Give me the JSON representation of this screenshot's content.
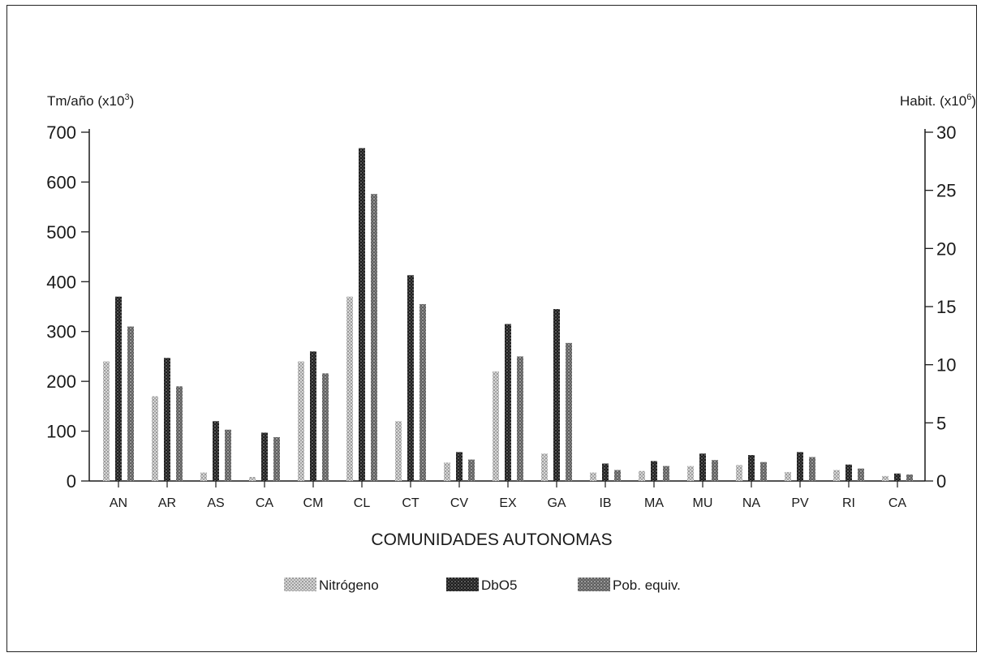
{
  "chart_data": {
    "type": "bar",
    "title": "",
    "xlabel": "COMUNIDADES AUTONOMAS",
    "ylabel_left": "Tm/año (x10",
    "ylabel_left_sup": "3",
    "ylabel_left_close": ")",
    "ylabel_right": "Habit. (x10",
    "ylabel_right_sup": "6",
    "ylabel_right_close": ")",
    "ylim_left": [
      0,
      700
    ],
    "yticks_left": [
      "0",
      "100",
      "200",
      "300",
      "400",
      "500",
      "600",
      "700"
    ],
    "ylim_right": [
      0,
      30
    ],
    "yticks_right": [
      "0",
      "5",
      "10",
      "15",
      "20",
      "25",
      "30"
    ],
    "grid": false,
    "legend_position": "bottom",
    "categories": [
      "AN",
      "AR",
      "AS",
      "CA",
      "CM",
      "CL",
      "CT",
      "CV",
      "EX",
      "GA",
      "IB",
      "MA",
      "MU",
      "NA",
      "PV",
      "RI",
      "CA"
    ],
    "series": [
      {
        "name": "Nitrógeno",
        "axis": "left",
        "color": "#b8b8b8",
        "pattern": "light",
        "values": [
          240,
          170,
          17,
          8,
          240,
          370,
          120,
          37,
          220,
          55,
          17,
          20,
          30,
          32,
          18,
          22,
          10
        ]
      },
      {
        "name": "DbO5",
        "axis": "left",
        "color": "#2a2a2a",
        "pattern": "dark",
        "values": [
          370,
          247,
          120,
          97,
          260,
          668,
          413,
          58,
          315,
          345,
          35,
          40,
          55,
          52,
          58,
          33,
          15
        ]
      },
      {
        "name": "Pob. equiv.",
        "axis": "left",
        "color": "#7a7a7a",
        "pattern": "medium",
        "values": [
          310,
          190,
          103,
          88,
          216,
          576,
          355,
          43,
          250,
          277,
          22,
          30,
          42,
          38,
          48,
          25,
          13
        ]
      }
    ]
  }
}
